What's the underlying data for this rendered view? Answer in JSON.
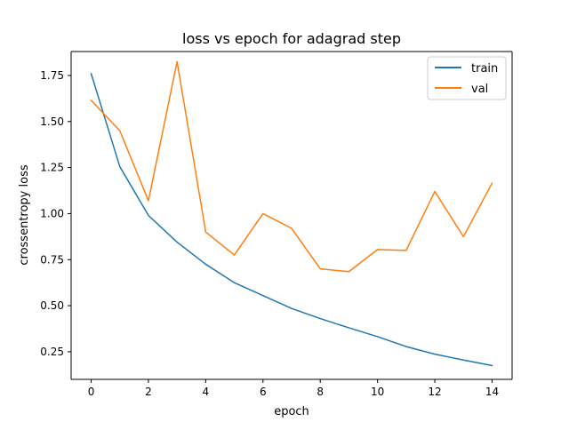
{
  "chart_data": {
    "type": "line",
    "title": "loss vs epoch for adagrad step",
    "xlabel": "epoch",
    "ylabel": "crossentropy loss",
    "xlim": [
      -0.7,
      14.7
    ],
    "ylim": [
      0.1,
      1.88
    ],
    "x_ticks": [
      0,
      2,
      4,
      6,
      8,
      10,
      12,
      14
    ],
    "x_tick_labels": [
      "0",
      "2",
      "4",
      "6",
      "8",
      "10",
      "12",
      "14"
    ],
    "y_ticks": [
      0.25,
      0.5,
      0.75,
      1.0,
      1.25,
      1.5,
      1.75
    ],
    "y_tick_labels": [
      "0.25",
      "0.50",
      "0.75",
      "1.00",
      "1.25",
      "1.50",
      "1.75"
    ],
    "grid": false,
    "legend_position": "top-right",
    "x": [
      0,
      1,
      2,
      3,
      4,
      5,
      6,
      7,
      8,
      9,
      10,
      11,
      12,
      13,
      14
    ],
    "series": [
      {
        "name": "train",
        "color": "#1f77b4",
        "values": [
          1.76,
          1.255,
          0.99,
          0.845,
          0.725,
          0.625,
          0.555,
          0.485,
          0.43,
          0.38,
          0.332,
          0.278,
          0.237,
          0.205,
          0.175
        ]
      },
      {
        "name": "val",
        "color": "#ff7f0e",
        "values": [
          1.615,
          1.45,
          1.07,
          1.825,
          0.9,
          0.775,
          1.0,
          0.92,
          0.7,
          0.685,
          0.805,
          0.8,
          1.12,
          0.875,
          1.165
        ]
      }
    ]
  }
}
